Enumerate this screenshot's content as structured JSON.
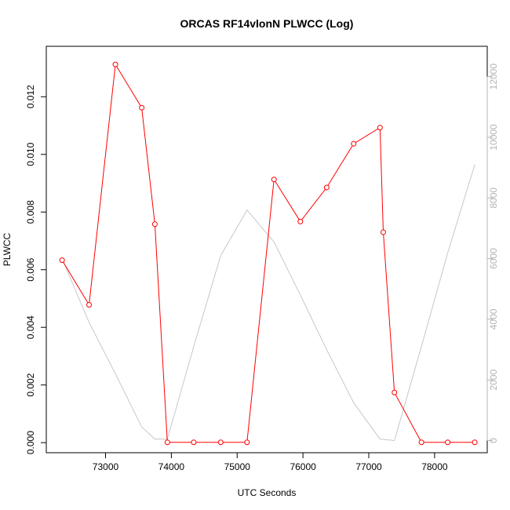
{
  "chart_data": {
    "type": "line",
    "title": "ORCAS RF14vlonN PLWCC (Log)",
    "xlabel": "UTC Seconds",
    "ylabel": "PLWCC",
    "y2label": "",
    "xlim": [
      72100,
      78800
    ],
    "ylim": [
      -0.00035,
      0.01375
    ],
    "y2lim": [
      -400,
      13000
    ],
    "x_ticks": [
      73000,
      74000,
      75000,
      76000,
      77000,
      78000
    ],
    "y_ticks": [
      0.0,
      0.002,
      0.004,
      0.006,
      0.008,
      0.01,
      0.012
    ],
    "y_tick_labels": [
      "0.000",
      "0.002",
      "0.004",
      "0.006",
      "0.008",
      "0.010",
      "0.012"
    ],
    "y2_ticks": [
      0,
      2000,
      4000,
      6000,
      8000,
      10000,
      12000
    ],
    "series": [
      {
        "axis": "left",
        "color": "#ff0000",
        "marker": "circle",
        "x": [
          72340,
          72750,
          73150,
          73550,
          73750,
          73940,
          74340,
          74750,
          75150,
          75560,
          75960,
          76360,
          76770,
          77170,
          77220,
          77390,
          77800,
          78200,
          78610
        ],
        "y": [
          0.00633,
          0.00478,
          0.01312,
          0.01162,
          0.00758,
          1e-05,
          1e-05,
          1e-05,
          1e-05,
          0.00913,
          0.00767,
          0.00885,
          0.01037,
          0.01093,
          0.0073,
          0.00174,
          1e-05,
          1e-05,
          1e-05
        ]
      },
      {
        "axis": "right",
        "color": "#c8c8c8",
        "marker": "none",
        "x": [
          72340,
          72750,
          73150,
          73550,
          73750,
          73940,
          74340,
          74750,
          75150,
          75560,
          75960,
          76360,
          76770,
          77170,
          77390,
          77800,
          78200,
          78610
        ],
        "y": [
          6000,
          3900,
          2200,
          450,
          50,
          50,
          3100,
          6100,
          7600,
          6550,
          4800,
          3000,
          1250,
          50,
          0,
          3100,
          6200,
          9100
        ]
      }
    ]
  },
  "colors": {
    "axis": "#000000",
    "right_axis": "#b4b4b4",
    "background": "#ffffff"
  }
}
